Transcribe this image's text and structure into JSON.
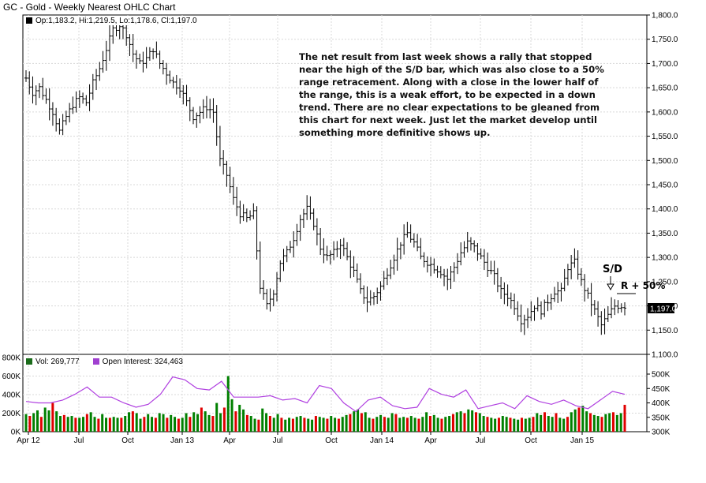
{
  "title": "GC - Gold - Weekly Nearest OHLC Chart",
  "ohlc_legend": "Op:1,183.2, Hi:1,219.5, Lo:1,178.6, Cl:1,197.0",
  "volume_legend": {
    "vol_label": "Vol: 269,777",
    "oi_label": "Open Interest: 324,463"
  },
  "annotation": "The net result from last week shows a rally that stopped near the high of the S/D bar, which was also close to a 50% range retracement.  Along with a close in the lower half of the range, this is a weak effort, to be expected in a down trend.  There are no clear expectations to be gleaned from this chart for next week.  Just let the market develop until something more definitive shows up.",
  "marks": {
    "sd": "S/D",
    "r50": "R + 50%",
    "last_price": "1,197.0"
  },
  "colors": {
    "up_volume": "#008000",
    "down_volume": "#e00000",
    "open_interest": "#b040e0",
    "price_bars": "#000000",
    "legend_vol": "#1a6b1a",
    "legend_oi": "#a040d0"
  },
  "chart_data": [
    {
      "type": "ohlc",
      "title": "GC - Gold - Weekly Nearest OHLC Chart",
      "ylim": [
        1100,
        1800
      ],
      "yticks": [
        "1,100.0",
        "1,150.0",
        "1,200.0",
        "1,250.0",
        "1,300.0",
        "1,350.0",
        "1,400.0",
        "1,450.0",
        "1,500.0",
        "1,550.0",
        "1,600.0",
        "1,650.0",
        "1,700.0",
        "1,750.0",
        "1,800.0"
      ],
      "xticks": [
        "Apr 12",
        "Jul",
        "Oct",
        "Jan 13",
        "Apr",
        "Jul",
        "Oct",
        "Jan 14",
        "Apr",
        "Jul",
        "Oct",
        "Jan 15"
      ],
      "close_path": [
        [
          0,
          1670
        ],
        [
          2,
          1640
        ],
        [
          4,
          1650
        ],
        [
          6,
          1625
        ],
        [
          8,
          1600
        ],
        [
          10,
          1560
        ],
        [
          12,
          1590
        ],
        [
          14,
          1615
        ],
        [
          16,
          1630
        ],
        [
          18,
          1620
        ],
        [
          20,
          1660
        ],
        [
          22,
          1690
        ],
        [
          24,
          1730
        ],
        [
          26,
          1770
        ],
        [
          28,
          1780
        ],
        [
          30,
          1760
        ],
        [
          32,
          1720
        ],
        [
          34,
          1700
        ],
        [
          36,
          1710
        ],
        [
          38,
          1730
        ],
        [
          40,
          1700
        ],
        [
          42,
          1680
        ],
        [
          44,
          1660
        ],
        [
          46,
          1650
        ],
        [
          48,
          1620
        ],
        [
          50,
          1590
        ],
        [
          52,
          1600
        ],
        [
          54,
          1610
        ],
        [
          56,
          1600
        ],
        [
          58,
          1500
        ],
        [
          60,
          1470
        ],
        [
          62,
          1420
        ],
        [
          64,
          1390
        ],
        [
          66,
          1380
        ],
        [
          68,
          1390
        ],
        [
          70,
          1240
        ],
        [
          72,
          1200
        ],
        [
          74,
          1230
        ],
        [
          76,
          1290
        ],
        [
          78,
          1310
        ],
        [
          80,
          1340
        ],
        [
          82,
          1380
        ],
        [
          84,
          1400
        ],
        [
          86,
          1370
        ],
        [
          88,
          1320
        ],
        [
          90,
          1300
        ],
        [
          92,
          1310
        ],
        [
          94,
          1330
        ],
        [
          96,
          1300
        ],
        [
          98,
          1270
        ],
        [
          100,
          1230
        ],
        [
          102,
          1210
        ],
        [
          104,
          1220
        ],
        [
          106,
          1240
        ],
        [
          108,
          1270
        ],
        [
          110,
          1300
        ],
        [
          112,
          1330
        ],
        [
          114,
          1350
        ],
        [
          116,
          1330
        ],
        [
          118,
          1300
        ],
        [
          120,
          1290
        ],
        [
          122,
          1280
        ],
        [
          124,
          1270
        ],
        [
          126,
          1255
        ],
        [
          128,
          1280
        ],
        [
          130,
          1310
        ],
        [
          132,
          1330
        ],
        [
          134,
          1320
        ],
        [
          136,
          1300
        ],
        [
          138,
          1280
        ],
        [
          140,
          1260
        ],
        [
          142,
          1230
        ],
        [
          144,
          1220
        ],
        [
          146,
          1200
        ],
        [
          148,
          1170
        ],
        [
          150,
          1180
        ],
        [
          152,
          1200
        ],
        [
          154,
          1190
        ],
        [
          156,
          1210
        ],
        [
          158,
          1230
        ],
        [
          160,
          1230
        ],
        [
          162,
          1280
        ],
        [
          164,
          1290
        ],
        [
          166,
          1250
        ],
        [
          168,
          1220
        ],
        [
          170,
          1190
        ],
        [
          172,
          1160
        ],
        [
          174,
          1180
        ],
        [
          176,
          1200
        ]
      ]
    },
    {
      "type": "bar",
      "title": "Volume",
      "ylim": [
        0,
        800000
      ],
      "yticks": [
        "0K",
        "200K",
        "400K",
        "600K",
        "800K"
      ],
      "values": [
        190000,
        170000,
        200000,
        230000,
        160000,
        260000,
        230000,
        310000,
        220000,
        170000,
        180000,
        160000,
        170000,
        150000,
        150000,
        160000,
        190000,
        210000,
        160000,
        140000,
        190000,
        150000,
        150000,
        160000,
        150000,
        150000,
        170000,
        210000,
        220000,
        200000,
        140000,
        160000,
        190000,
        160000,
        150000,
        200000,
        190000,
        150000,
        180000,
        160000,
        140000,
        150000,
        200000,
        160000,
        210000,
        190000,
        260000,
        220000,
        180000,
        170000,
        310000,
        200000,
        260000,
        600000,
        350000,
        220000,
        290000,
        240000,
        180000,
        170000,
        140000,
        130000,
        250000,
        200000,
        170000,
        150000,
        190000,
        150000,
        130000,
        150000,
        140000,
        160000,
        170000,
        150000,
        140000,
        130000,
        170000,
        160000,
        150000,
        140000,
        170000,
        150000,
        140000,
        160000,
        180000,
        190000,
        220000,
        240000,
        200000,
        210000,
        150000,
        140000,
        160000,
        180000,
        160000,
        150000,
        200000,
        190000,
        150000,
        160000,
        150000,
        170000,
        150000,
        140000,
        160000,
        210000,
        170000,
        180000,
        150000,
        140000,
        160000,
        170000,
        190000,
        210000,
        220000,
        200000,
        240000,
        230000,
        210000,
        200000,
        170000,
        160000,
        150000,
        140000,
        150000,
        170000,
        160000,
        150000,
        140000,
        130000,
        150000,
        140000,
        150000,
        160000,
        200000,
        180000,
        210000,
        170000,
        160000,
        200000,
        150000,
        140000,
        160000,
        210000,
        240000,
        260000,
        280000,
        220000,
        200000,
        180000,
        170000,
        160000,
        190000,
        200000,
        210000,
        180000,
        200000,
        290000
      ]
    },
    {
      "type": "line",
      "title": "Open Interest",
      "ylim": [
        300000,
        500000
      ],
      "yticks": [
        "300K",
        "350K",
        "400K",
        "450K",
        "500K"
      ],
      "x": [
        0,
        4,
        8,
        12,
        16,
        20,
        24,
        28,
        32,
        36,
        40,
        44,
        48,
        52,
        56,
        60,
        64,
        68,
        72,
        76,
        80,
        84,
        88,
        92,
        96,
        100,
        104,
        108,
        112,
        116,
        120,
        124,
        128,
        132,
        136,
        140,
        144,
        148,
        152,
        156,
        160,
        164,
        168,
        172,
        176,
        180,
        184,
        188,
        192,
        196
      ],
      "values": [
        405000,
        400000,
        400000,
        410000,
        430000,
        455000,
        420000,
        420000,
        400000,
        385000,
        395000,
        430000,
        490000,
        480000,
        450000,
        445000,
        475000,
        420000,
        420000,
        420000,
        425000,
        410000,
        415000,
        400000,
        460000,
        450000,
        400000,
        370000,
        410000,
        420000,
        390000,
        380000,
        385000,
        450000,
        430000,
        420000,
        445000,
        380000,
        390000,
        400000,
        380000,
        425000,
        405000,
        395000,
        410000,
        390000,
        380000,
        410000,
        440000,
        430000
      ]
    }
  ]
}
